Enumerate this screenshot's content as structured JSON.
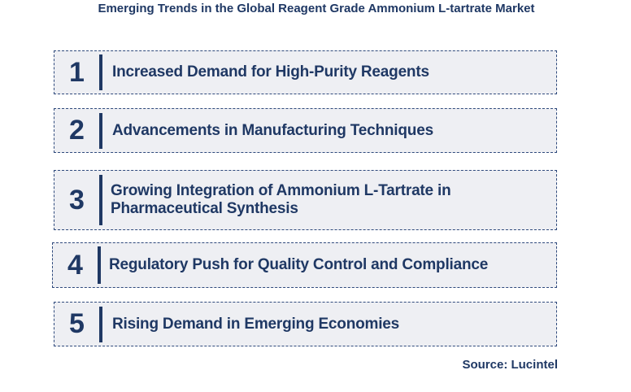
{
  "title": "Emerging Trends in the Global Reagent Grade Ammonium L-tartrate Market",
  "trends": [
    {
      "number": "1",
      "text": "Increased Demand for High-Purity Reagents"
    },
    {
      "number": "2",
      "text": "Advancements in Manufacturing Techniques"
    },
    {
      "number": "3",
      "text": "Growing Integration of Ammonium L-Tartrate in Pharmaceutical Synthesis"
    },
    {
      "number": "4",
      "text": "Regulatory Push for Quality Control and Compliance"
    },
    {
      "number": "5",
      "text": "Rising Demand in Emerging Economies"
    }
  ],
  "source": "Source: Lucintel",
  "colors": {
    "primary": "#1f3864",
    "box_background": "#eeeff3",
    "box_border": "#2f4a7c"
  }
}
